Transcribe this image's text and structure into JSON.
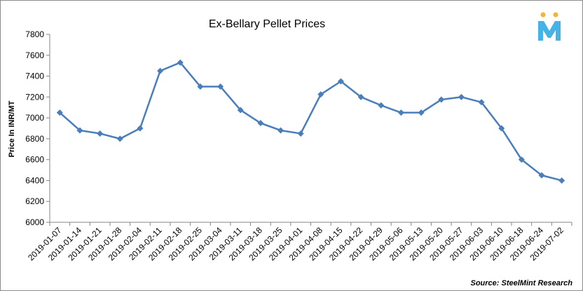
{
  "chart_data": {
    "type": "line",
    "title": "Ex-Bellary Pellet Prices",
    "ylabel": "Price In INR/MT",
    "xlabel": "",
    "ylim": [
      6000,
      7800
    ],
    "yticks": [
      6000,
      6200,
      6400,
      6600,
      6800,
      7000,
      7200,
      7400,
      7600,
      7800
    ],
    "grid": false,
    "legend": "none",
    "categories": [
      "2019-01-07",
      "2019-01-14",
      "2019-01-21",
      "2019-01-28",
      "2019-02-04",
      "2019-02-11",
      "2019-02-18",
      "2019-02-25",
      "2019-03-04",
      "2019-03-11",
      "2019-03-18",
      "2019-03-25",
      "2019-04-01",
      "2019-04-08",
      "2019-04-15",
      "2019-04-22",
      "2019-04-29",
      "2019-05-06",
      "2019-05-13",
      "2019-05-20",
      "2019-05-27",
      "2019-06-03",
      "2019-06-10",
      "2019-06-18",
      "2019-06-24",
      "2019-07-02"
    ],
    "series": [
      {
        "values": [
          7050,
          6880,
          6850,
          6800,
          6900,
          7450,
          7530,
          7300,
          7300,
          7075,
          6950,
          6880,
          6850,
          7225,
          7350,
          7200,
          7120,
          7050,
          7050,
          7175,
          7200,
          7150,
          6900,
          6600,
          6450,
          6400
        ],
        "color": "#4a7ebb"
      }
    ],
    "source": "Source: SteelMint Research"
  },
  "logo": {
    "name": "steelmint-logo-icon",
    "colors": [
      "#f5b335",
      "#45b3e7"
    ]
  }
}
